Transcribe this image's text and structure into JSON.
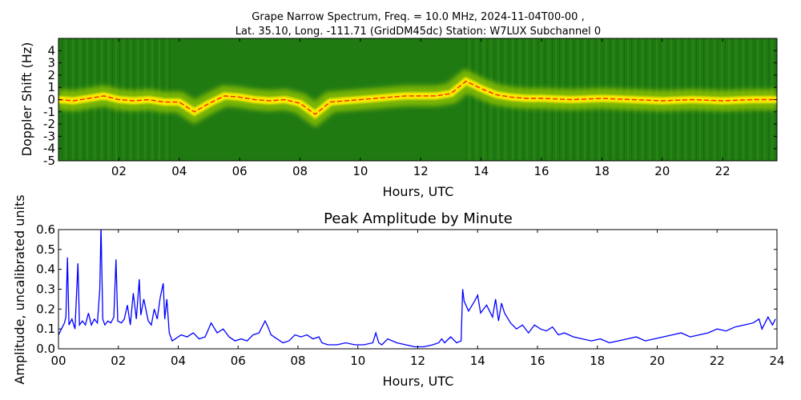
{
  "figure": {
    "suptitle_line1": "Grape Narrow Spectrum, Freq. = 10.0 MHz, 2024-11-04T00-00 ,",
    "suptitle_line2": "Lat.  35.10, Long. -111.71 (GridDM45dc) Station: W7LUX Subchannel 0"
  },
  "chart_data": [
    {
      "type": "heatmap",
      "title": "",
      "xlabel": "Hours, UTC",
      "ylabel": "Doppler Shift (Hz)",
      "xlim": [
        0,
        23.8
      ],
      "ylim": [
        -5,
        5
      ],
      "x_ticks": [
        2,
        4,
        6,
        8,
        10,
        12,
        14,
        16,
        18,
        20,
        22
      ],
      "x_tick_labels": [
        "02",
        "04",
        "06",
        "08",
        "10",
        "12",
        "14",
        "16",
        "18",
        "20",
        "22"
      ],
      "y_ticks": [
        -5,
        -4,
        -3,
        -2,
        -1,
        0,
        1,
        2,
        3,
        4
      ],
      "y_tick_labels": [
        "-5",
        "-4",
        "-3",
        "-2",
        "-1",
        "0",
        "1",
        "2",
        "3",
        "4"
      ],
      "colors": {
        "background": "#1f7a12",
        "mid": "#9ac800",
        "high": "#ffee00",
        "peak": "#ff2200"
      },
      "trace_hours": [
        0.0,
        0.5,
        1.0,
        1.5,
        2.0,
        2.5,
        3.0,
        3.5,
        4.0,
        4.5,
        5.0,
        5.5,
        6.0,
        6.5,
        7.0,
        7.5,
        8.0,
        8.5,
        9.0,
        9.5,
        10.0,
        10.5,
        11.0,
        11.5,
        12.0,
        12.5,
        13.0,
        13.5,
        14.0,
        14.5,
        15.0,
        15.5,
        16.0,
        17.0,
        18.0,
        19.0,
        20.0,
        21.0,
        22.0,
        23.0,
        23.8
      ],
      "trace_doppler": [
        0.0,
        -0.1,
        0.1,
        0.3,
        0.0,
        -0.1,
        0.0,
        -0.2,
        -0.2,
        -1.0,
        -0.3,
        0.3,
        0.2,
        0.0,
        -0.1,
        0.0,
        -0.3,
        -1.2,
        -0.2,
        -0.1,
        0.0,
        0.1,
        0.2,
        0.3,
        0.3,
        0.3,
        0.5,
        1.5,
        0.9,
        0.4,
        0.2,
        0.1,
        0.1,
        0.0,
        0.1,
        0.0,
        -0.1,
        0.0,
        -0.1,
        0.0,
        0.0
      ]
    },
    {
      "type": "line",
      "title": "Peak Amplitude by Minute",
      "xlabel": "Hours, UTC",
      "ylabel": "Amplitude, uncalibrated units",
      "xlim": [
        0,
        24
      ],
      "ylim": [
        0,
        0.6
      ],
      "x_ticks": [
        0,
        2,
        4,
        6,
        8,
        10,
        12,
        14,
        16,
        18,
        20,
        22,
        24
      ],
      "x_tick_labels": [
        "00",
        "02",
        "04",
        "06",
        "08",
        "10",
        "12",
        "14",
        "16",
        "18",
        "20",
        "22",
        "24"
      ],
      "y_ticks": [
        0.0,
        0.1,
        0.2,
        0.3,
        0.4,
        0.5,
        0.6
      ],
      "y_tick_labels": [
        "0.0",
        "0.1",
        "0.2",
        "0.3",
        "0.4",
        "0.5",
        "0.6"
      ],
      "line_color": "#0000ff",
      "x": [
        0.0,
        0.1,
        0.2,
        0.25,
        0.3,
        0.35,
        0.45,
        0.55,
        0.65,
        0.7,
        0.8,
        0.9,
        1.0,
        1.1,
        1.2,
        1.3,
        1.38,
        1.42,
        1.48,
        1.55,
        1.65,
        1.75,
        1.85,
        1.92,
        1.98,
        2.1,
        2.2,
        2.3,
        2.4,
        2.5,
        2.6,
        2.7,
        2.75,
        2.85,
        3.0,
        3.1,
        3.2,
        3.3,
        3.4,
        3.5,
        3.55,
        3.62,
        3.7,
        3.8,
        3.9,
        4.1,
        4.3,
        4.5,
        4.7,
        4.9,
        5.1,
        5.3,
        5.5,
        5.7,
        5.9,
        6.1,
        6.3,
        6.5,
        6.7,
        6.9,
        7.0,
        7.1,
        7.3,
        7.5,
        7.7,
        7.9,
        8.1,
        8.3,
        8.5,
        8.7,
        8.8,
        9.0,
        9.3,
        9.6,
        9.9,
        10.2,
        10.5,
        10.6,
        10.7,
        10.8,
        11.0,
        11.3,
        11.6,
        11.9,
        12.2,
        12.5,
        12.7,
        12.8,
        12.9,
        13.1,
        13.3,
        13.45,
        13.5,
        13.55,
        13.7,
        13.9,
        14.0,
        14.1,
        14.3,
        14.5,
        14.6,
        14.7,
        14.8,
        14.9,
        15.1,
        15.3,
        15.5,
        15.7,
        15.9,
        16.1,
        16.3,
        16.5,
        16.7,
        16.9,
        17.2,
        17.5,
        17.8,
        18.1,
        18.4,
        18.7,
        19.0,
        19.3,
        19.6,
        19.9,
        20.2,
        20.5,
        20.8,
        21.1,
        21.4,
        21.7,
        22.0,
        22.3,
        22.6,
        22.9,
        23.2,
        23.4,
        23.5,
        23.7,
        23.85,
        23.95
      ],
      "y": [
        0.07,
        0.1,
        0.13,
        0.16,
        0.46,
        0.12,
        0.15,
        0.1,
        0.43,
        0.12,
        0.14,
        0.12,
        0.18,
        0.12,
        0.15,
        0.13,
        0.3,
        0.62,
        0.15,
        0.12,
        0.14,
        0.13,
        0.16,
        0.45,
        0.14,
        0.13,
        0.15,
        0.22,
        0.12,
        0.28,
        0.15,
        0.35,
        0.17,
        0.25,
        0.14,
        0.12,
        0.2,
        0.15,
        0.26,
        0.33,
        0.15,
        0.25,
        0.08,
        0.04,
        0.05,
        0.07,
        0.06,
        0.08,
        0.05,
        0.06,
        0.13,
        0.08,
        0.1,
        0.06,
        0.04,
        0.05,
        0.04,
        0.07,
        0.08,
        0.14,
        0.11,
        0.07,
        0.05,
        0.03,
        0.04,
        0.07,
        0.06,
        0.07,
        0.05,
        0.06,
        0.03,
        0.02,
        0.02,
        0.03,
        0.02,
        0.02,
        0.03,
        0.08,
        0.03,
        0.02,
        0.05,
        0.03,
        0.02,
        0.01,
        0.01,
        0.02,
        0.03,
        0.05,
        0.03,
        0.06,
        0.03,
        0.04,
        0.3,
        0.24,
        0.19,
        0.24,
        0.27,
        0.18,
        0.22,
        0.16,
        0.25,
        0.14,
        0.23,
        0.18,
        0.13,
        0.1,
        0.12,
        0.08,
        0.12,
        0.1,
        0.09,
        0.11,
        0.07,
        0.08,
        0.06,
        0.05,
        0.04,
        0.05,
        0.03,
        0.04,
        0.05,
        0.06,
        0.04,
        0.05,
        0.06,
        0.07,
        0.08,
        0.06,
        0.07,
        0.08,
        0.1,
        0.09,
        0.11,
        0.12,
        0.13,
        0.15,
        0.1,
        0.16,
        0.12,
        0.15
      ]
    }
  ]
}
